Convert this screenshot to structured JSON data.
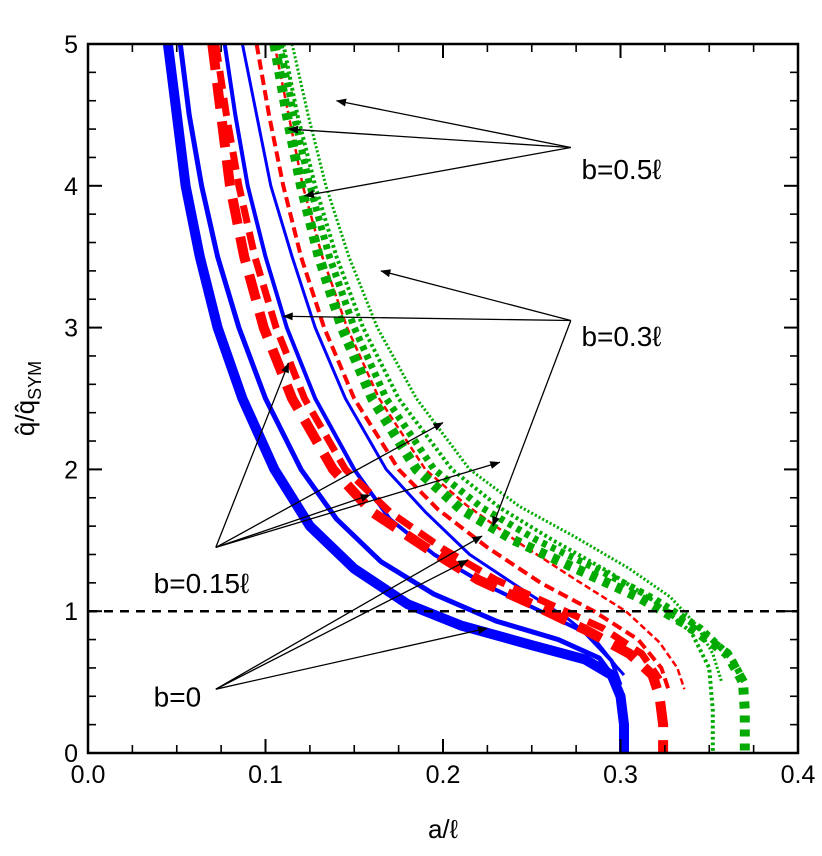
{
  "chart_data": {
    "type": "line",
    "xlabel": "a/ℓ",
    "ylabel": "q̂/q̂SYM",
    "ylabel_main": "q̂/q̂",
    "ylabel_sub": "SYM",
    "xlim": [
      0,
      0.4
    ],
    "ylim": [
      0,
      5
    ],
    "x_ticks": [
      "0.0",
      "0.1",
      "0.2",
      "0.3",
      "0.4"
    ],
    "y_ticks": [
      "0",
      "1",
      "2",
      "3",
      "4",
      "5"
    ],
    "grid": false,
    "legend": "none",
    "reference_line": {
      "y": 1,
      "style": "dashed",
      "color": "#000000"
    },
    "colors": {
      "blue": "#0000ff",
      "red": "#ff0000",
      "green": "#00aa00"
    },
    "series": [
      {
        "color": "blue",
        "style": "solid",
        "width": 10,
        "points": [
          [
            0.045,
            5
          ],
          [
            0.05,
            4.5
          ],
          [
            0.055,
            4
          ],
          [
            0.063,
            3.5
          ],
          [
            0.073,
            3
          ],
          [
            0.087,
            2.5
          ],
          [
            0.105,
            2
          ],
          [
            0.125,
            1.6
          ],
          [
            0.15,
            1.3
          ],
          [
            0.18,
            1.05
          ],
          [
            0.21,
            0.9
          ],
          [
            0.25,
            0.76
          ],
          [
            0.28,
            0.66
          ],
          [
            0.295,
            0.55
          ],
          [
            0.3,
            0.4
          ],
          [
            0.302,
            0.2
          ],
          [
            0.302,
            0
          ]
        ]
      },
      {
        "color": "blue",
        "style": "solid",
        "width": 5,
        "points": [
          [
            0.052,
            5
          ],
          [
            0.057,
            4.5
          ],
          [
            0.064,
            4
          ],
          [
            0.073,
            3.5
          ],
          [
            0.085,
            3
          ],
          [
            0.1,
            2.5
          ],
          [
            0.12,
            2
          ],
          [
            0.14,
            1.65
          ],
          [
            0.165,
            1.35
          ],
          [
            0.195,
            1.12
          ],
          [
            0.23,
            0.93
          ],
          [
            0.265,
            0.8
          ],
          [
            0.288,
            0.67
          ],
          [
            0.298,
            0.5
          ],
          [
            0.3,
            0.4
          ]
        ]
      },
      {
        "color": "blue",
        "style": "solid",
        "width": 4,
        "points": [
          [
            0.077,
            5
          ],
          [
            0.083,
            4.5
          ],
          [
            0.09,
            4
          ],
          [
            0.1,
            3.5
          ],
          [
            0.112,
            3
          ],
          [
            0.128,
            2.5
          ],
          [
            0.15,
            2
          ],
          [
            0.17,
            1.65
          ],
          [
            0.195,
            1.4
          ],
          [
            0.225,
            1.18
          ],
          [
            0.255,
            1.0
          ],
          [
            0.28,
            0.85
          ],
          [
            0.295,
            0.65
          ],
          [
            0.3,
            0.48
          ]
        ]
      },
      {
        "color": "blue",
        "style": "solid",
        "width": 3,
        "points": [
          [
            0.087,
            5
          ],
          [
            0.095,
            4.5
          ],
          [
            0.103,
            4
          ],
          [
            0.115,
            3.5
          ],
          [
            0.128,
            3
          ],
          [
            0.145,
            2.5
          ],
          [
            0.168,
            2
          ],
          [
            0.19,
            1.7
          ],
          [
            0.215,
            1.4
          ],
          [
            0.245,
            1.15
          ],
          [
            0.27,
            0.95
          ],
          [
            0.287,
            0.78
          ],
          [
            0.297,
            0.62
          ],
          [
            0.302,
            0.55
          ]
        ]
      },
      {
        "color": "red",
        "style": "dashed",
        "width": 10,
        "points": [
          [
            0.07,
            5
          ],
          [
            0.075,
            4.5
          ],
          [
            0.08,
            4
          ],
          [
            0.088,
            3.5
          ],
          [
            0.099,
            3
          ],
          [
            0.115,
            2.5
          ],
          [
            0.138,
            2
          ],
          [
            0.16,
            1.7
          ],
          [
            0.19,
            1.45
          ],
          [
            0.22,
            1.22
          ],
          [
            0.25,
            1.05
          ],
          [
            0.28,
            0.87
          ],
          [
            0.305,
            0.7
          ],
          [
            0.318,
            0.55
          ],
          [
            0.322,
            0.4
          ],
          [
            0.324,
            0.2
          ],
          [
            0.324,
            0
          ]
        ]
      },
      {
        "color": "red",
        "style": "dashed",
        "width": 7,
        "points": [
          [
            0.072,
            5
          ],
          [
            0.078,
            4.5
          ],
          [
            0.085,
            4
          ],
          [
            0.094,
            3.5
          ],
          [
            0.106,
            3
          ],
          [
            0.122,
            2.5
          ],
          [
            0.145,
            2
          ],
          [
            0.17,
            1.7
          ],
          [
            0.2,
            1.44
          ],
          [
            0.23,
            1.22
          ],
          [
            0.26,
            1.05
          ],
          [
            0.29,
            0.88
          ],
          [
            0.312,
            0.7
          ],
          [
            0.322,
            0.52
          ]
        ]
      },
      {
        "color": "red",
        "style": "dashed",
        "width": 4,
        "points": [
          [
            0.095,
            5
          ],
          [
            0.102,
            4.5
          ],
          [
            0.11,
            4
          ],
          [
            0.12,
            3.5
          ],
          [
            0.133,
            3
          ],
          [
            0.15,
            2.5
          ],
          [
            0.175,
            2
          ],
          [
            0.197,
            1.72
          ],
          [
            0.225,
            1.45
          ],
          [
            0.255,
            1.2
          ],
          [
            0.285,
            1.0
          ],
          [
            0.31,
            0.8
          ],
          [
            0.323,
            0.6
          ],
          [
            0.327,
            0.45
          ]
        ]
      },
      {
        "color": "red",
        "style": "dashed",
        "width": 2.5,
        "points": [
          [
            0.105,
            5
          ],
          [
            0.113,
            4.5
          ],
          [
            0.121,
            4
          ],
          [
            0.132,
            3.5
          ],
          [
            0.146,
            3
          ],
          [
            0.164,
            2.5
          ],
          [
            0.19,
            2
          ],
          [
            0.213,
            1.75
          ],
          [
            0.243,
            1.48
          ],
          [
            0.275,
            1.22
          ],
          [
            0.303,
            1.0
          ],
          [
            0.322,
            0.78
          ],
          [
            0.332,
            0.6
          ],
          [
            0.336,
            0.45
          ]
        ]
      },
      {
        "color": "green",
        "style": "dotted",
        "width": 10,
        "points": [
          [
            0.105,
            5
          ],
          [
            0.112,
            4.5
          ],
          [
            0.12,
            4
          ],
          [
            0.13,
            3.5
          ],
          [
            0.143,
            3
          ],
          [
            0.16,
            2.5
          ],
          [
            0.185,
            2
          ],
          [
            0.21,
            1.72
          ],
          [
            0.24,
            1.5
          ],
          [
            0.275,
            1.3
          ],
          [
            0.31,
            1.1
          ],
          [
            0.338,
            0.9
          ],
          [
            0.36,
            0.7
          ],
          [
            0.369,
            0.5
          ],
          [
            0.37,
            0.3
          ],
          [
            0.37,
            0
          ]
        ]
      },
      {
        "color": "green",
        "style": "dotted",
        "width": 7,
        "points": [
          [
            0.108,
            5
          ],
          [
            0.116,
            4.5
          ],
          [
            0.125,
            4
          ],
          [
            0.136,
            3.5
          ],
          [
            0.15,
            3
          ],
          [
            0.168,
            2.5
          ],
          [
            0.195,
            2
          ],
          [
            0.222,
            1.73
          ],
          [
            0.253,
            1.5
          ],
          [
            0.288,
            1.29
          ],
          [
            0.32,
            1.08
          ],
          [
            0.345,
            0.88
          ],
          [
            0.362,
            0.68
          ],
          [
            0.37,
            0.5
          ]
        ]
      },
      {
        "color": "green",
        "style": "dotted",
        "width": 4,
        "points": [
          [
            0.11,
            5
          ],
          [
            0.118,
            4.5
          ],
          [
            0.128,
            4
          ],
          [
            0.14,
            3.5
          ],
          [
            0.155,
            3
          ],
          [
            0.175,
            2.5
          ],
          [
            0.205,
            2
          ],
          [
            0.232,
            1.73
          ],
          [
            0.262,
            1.5
          ],
          [
            0.293,
            1.28
          ],
          [
            0.318,
            1.08
          ],
          [
            0.34,
            0.85
          ],
          [
            0.35,
            0.6
          ],
          [
            0.352,
            0.3
          ],
          [
            0.352,
            0
          ]
        ]
      },
      {
        "color": "green",
        "style": "dotted",
        "width": 3,
        "points": [
          [
            0.115,
            5
          ],
          [
            0.124,
            4.5
          ],
          [
            0.134,
            4
          ],
          [
            0.147,
            3.5
          ],
          [
            0.163,
            3
          ],
          [
            0.185,
            2.5
          ],
          [
            0.215,
            2
          ],
          [
            0.243,
            1.74
          ],
          [
            0.275,
            1.52
          ],
          [
            0.305,
            1.3
          ],
          [
            0.328,
            1.1
          ],
          [
            0.343,
            0.9
          ],
          [
            0.352,
            0.7
          ],
          [
            0.357,
            0.5
          ]
        ]
      }
    ],
    "annotations": [
      {
        "text": "b=0.5ℓ",
        "label_anchor": [
          0.278,
          4.12
        ],
        "arrow_start": [
          0.272,
          4.27
        ],
        "targets": [
          [
            0.14,
            4.6
          ],
          [
            0.113,
            4.4
          ],
          [
            0.122,
            3.93
          ]
        ]
      },
      {
        "text": "b=0.3ℓ",
        "label_anchor": [
          0.278,
          2.94
        ],
        "arrow_start": [
          0.272,
          3.05
        ],
        "targets": [
          [
            0.165,
            3.4
          ],
          [
            0.11,
            3.08
          ],
          [
            0.228,
            1.6
          ]
        ]
      },
      {
        "text": "b=0.15ℓ",
        "label_anchor": [
          0.037,
          1.2
        ],
        "arrow_start": [
          0.072,
          1.45
        ],
        "targets": [
          [
            0.113,
            2.75
          ],
          [
            0.159,
            1.82
          ],
          [
            0.2,
            2.33
          ],
          [
            0.232,
            2.05
          ]
        ]
      },
      {
        "text": "b=0",
        "label_anchor": [
          0.037,
          0.4
        ],
        "arrow_start": [
          0.072,
          0.45
        ],
        "targets": [
          [
            0.225,
            0.88
          ],
          [
            0.222,
            1.53
          ],
          [
            0.214,
            1.36
          ]
        ]
      }
    ]
  }
}
